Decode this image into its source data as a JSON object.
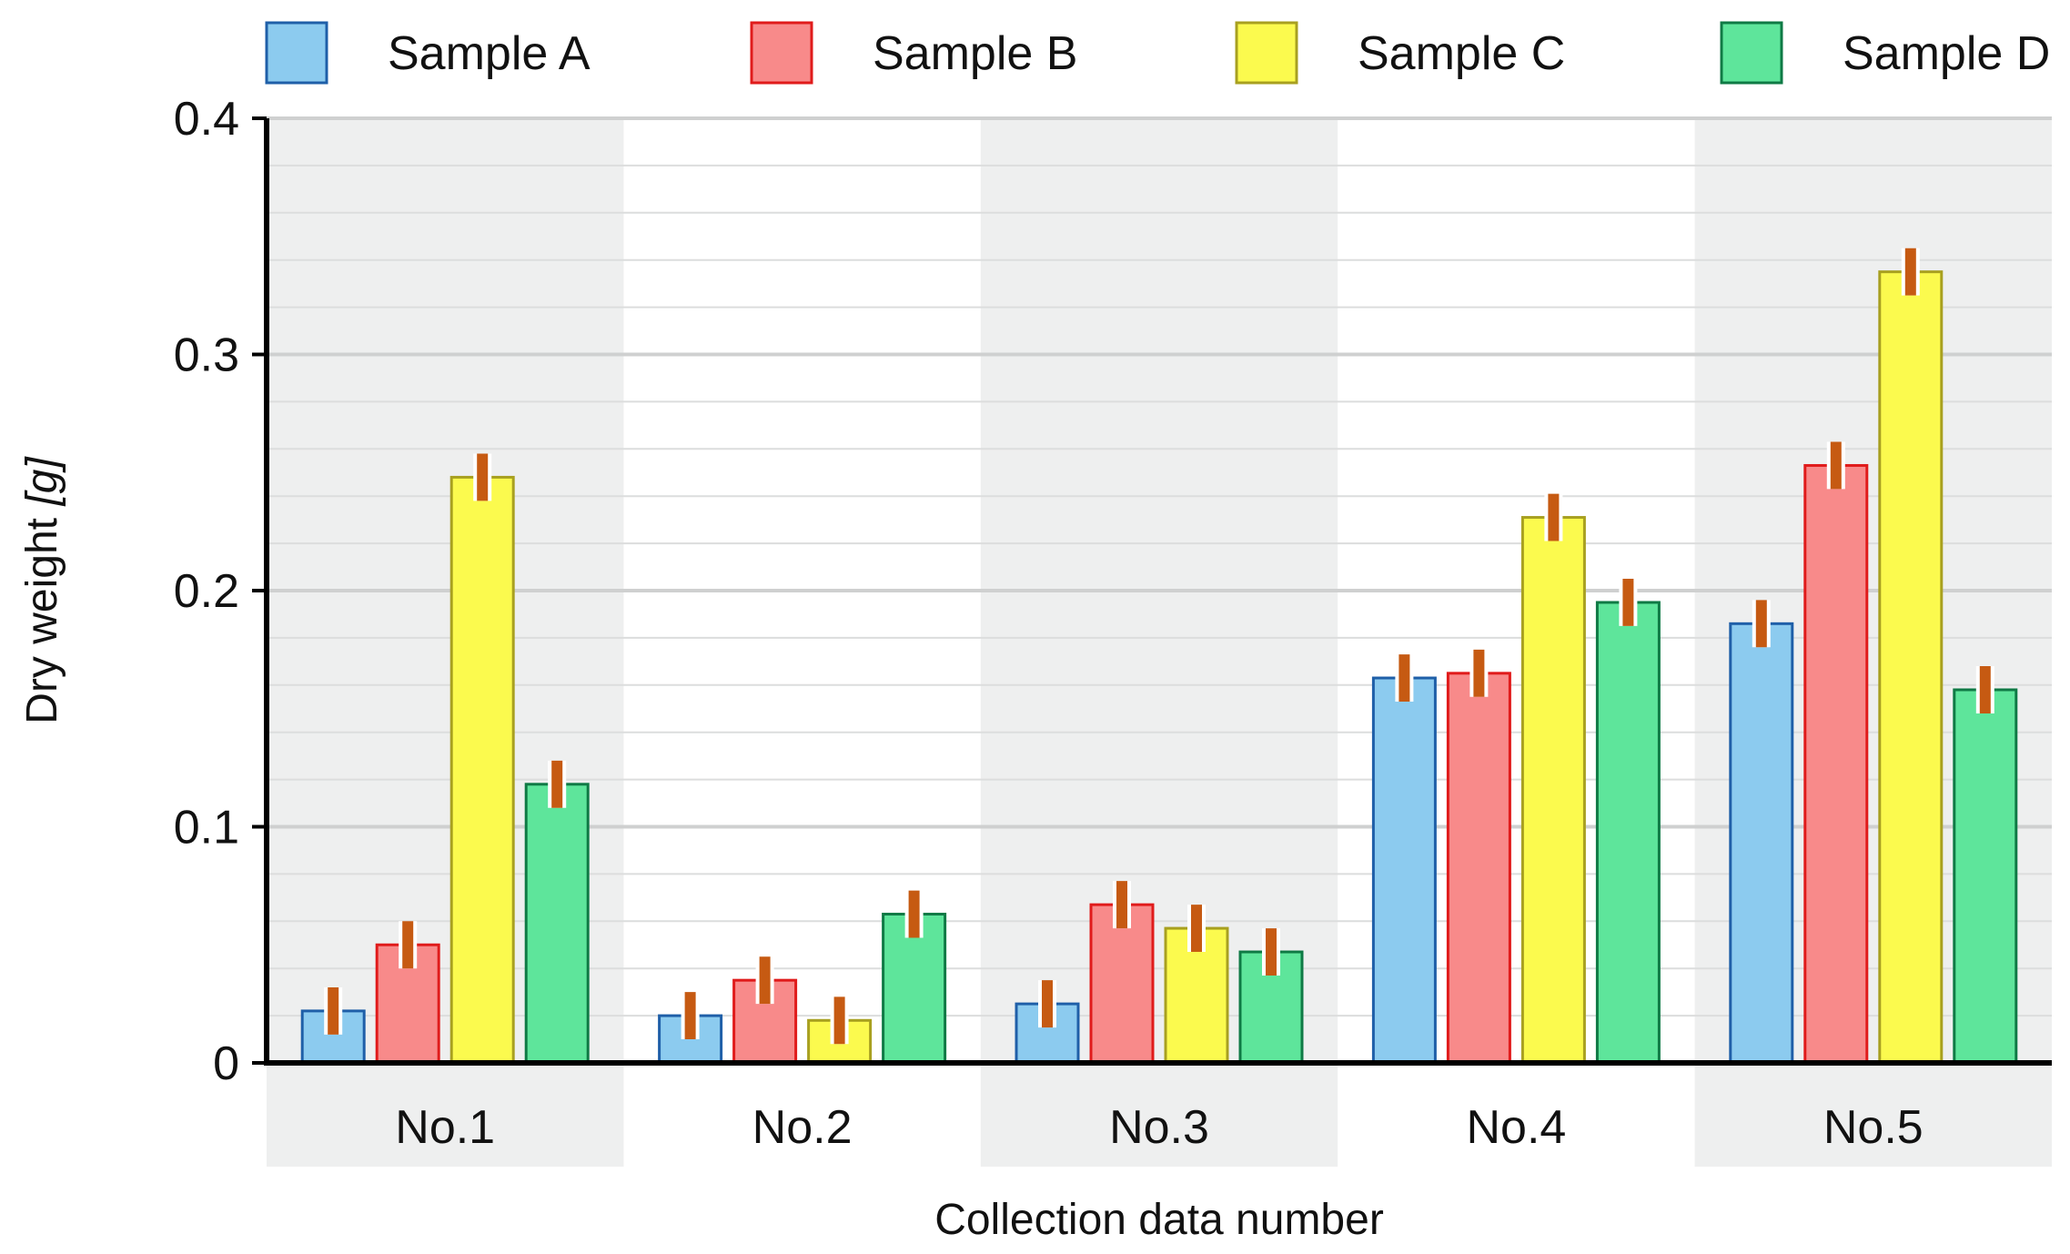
{
  "chart_data": {
    "type": "bar",
    "title": "",
    "xlabel": "Collection data number",
    "ylabel_main": "Dry weight ",
    "ylabel_unit": "[g]",
    "ylim": [
      0,
      0.4
    ],
    "yticks": [
      0,
      0.1,
      0.2,
      0.3,
      0.4
    ],
    "ytick_labels": [
      "0",
      "0.1",
      "0.2",
      "0.3",
      "0.4"
    ],
    "minor_gridlines_per_major": 5,
    "grid": true,
    "legend_position": "top",
    "categories": [
      "No.1",
      "No.2",
      "No.3",
      "No.4",
      "No.5"
    ],
    "series": [
      {
        "name": "Sample A",
        "fill": "#8ccbef",
        "stroke": "#1f5fa8",
        "values": [
          0.022,
          0.02,
          0.025,
          0.163,
          0.186
        ],
        "errors": [
          0.01,
          0.01,
          0.01,
          0.01,
          0.01
        ]
      },
      {
        "name": "Sample B",
        "fill": "#f88a8a",
        "stroke": "#e01b1b",
        "values": [
          0.05,
          0.035,
          0.067,
          0.165,
          0.253
        ],
        "errors": [
          0.01,
          0.01,
          0.01,
          0.01,
          0.01
        ]
      },
      {
        "name": "Sample C",
        "fill": "#fbfa4e",
        "stroke": "#a8a020",
        "values": [
          0.248,
          0.018,
          0.057,
          0.231,
          0.335
        ],
        "errors": [
          0.01,
          0.01,
          0.01,
          0.01,
          0.01
        ]
      },
      {
        "name": "Sample D",
        "fill": "#5ee59b",
        "stroke": "#0f7a45",
        "values": [
          0.118,
          0.063,
          0.047,
          0.195,
          0.158
        ],
        "errors": [
          0.01,
          0.01,
          0.01,
          0.01,
          0.01
        ]
      }
    ],
    "error_bar_color": "#c65a12",
    "band_color": "#eeefef"
  }
}
